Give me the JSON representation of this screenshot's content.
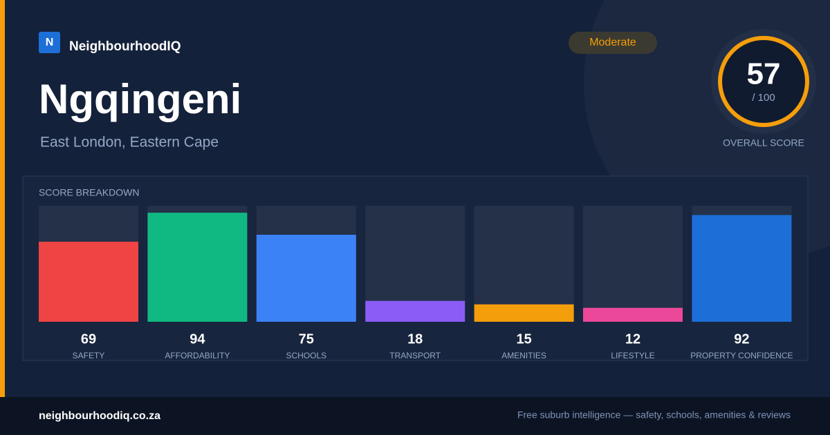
{
  "brand": {
    "logo": "N",
    "name": "NeighbourhoodIQ"
  },
  "place": {
    "name": "Ngqingeni",
    "region": "East London, Eastern Cape"
  },
  "badge": "Moderate",
  "overall": {
    "score": 57,
    "max_label": "/ 100",
    "label": "OVERALL SCORE"
  },
  "footer": {
    "url": "neighbourhoodiq.co.za",
    "tagline": "Free suburb intelligence — safety, schools, amenities & reviews"
  },
  "chart_data": {
    "type": "bar",
    "title": "SCORE BREAKDOWN",
    "categories": [
      "SAFETY",
      "AFFORDABILITY",
      "SCHOOLS",
      "TRANSPORT",
      "AMENITIES",
      "LIFESTYLE",
      "PROPERTY CONFIDENCE"
    ],
    "values": [
      69,
      94,
      75,
      18,
      15,
      12,
      92
    ],
    "colors": [
      "#ef4444",
      "#10b981",
      "#3b82f6",
      "#8b5cf6",
      "#f59e0b",
      "#ec4899",
      "#1d6fd8"
    ],
    "ylim": [
      0,
      100
    ]
  }
}
